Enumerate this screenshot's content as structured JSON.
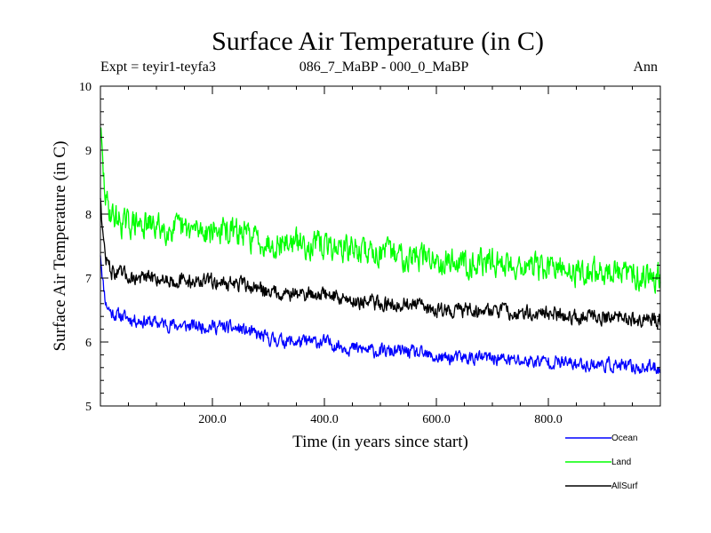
{
  "chart_data": {
    "type": "line",
    "title": "Surface Air Temperature (in C)",
    "subtitle_left": "Expt = teyir1-teyfa3",
    "subtitle_center": "086_7_MaBP - 000_0_MaBP",
    "subtitle_right": "Ann",
    "xlabel": "Time (in years since start)",
    "ylabel": "Surface Air Temperature (in C)",
    "xlim": [
      0,
      1000
    ],
    "ylim": [
      5,
      10
    ],
    "xticks": [
      200,
      400,
      600,
      800
    ],
    "xtick_labels": [
      "200.0",
      "400.0",
      "600.0",
      "800.0"
    ],
    "yticks": [
      5,
      6,
      7,
      8,
      9,
      10
    ],
    "ytick_labels": [
      "5",
      "6",
      "7",
      "8",
      "9",
      "10"
    ],
    "legend_position": "bottom-right, outside plot",
    "series": [
      {
        "name": "Ocean",
        "color": "#0000ff",
        "x": [
          0,
          5,
          10,
          20,
          40,
          60,
          100,
          150,
          200,
          250,
          300,
          350,
          400,
          450,
          500,
          550,
          600,
          650,
          700,
          750,
          800,
          850,
          900,
          950,
          1000
        ],
        "values": [
          7.4,
          6.9,
          6.6,
          6.45,
          6.4,
          6.35,
          6.3,
          6.25,
          6.25,
          6.2,
          6.05,
          6.0,
          6.0,
          5.9,
          5.85,
          5.85,
          5.75,
          5.75,
          5.75,
          5.7,
          5.7,
          5.65,
          5.65,
          5.6,
          5.6
        ],
        "noise": 0.09
      },
      {
        "name": "Land",
        "color": "#00ff00",
        "x": [
          0,
          5,
          10,
          20,
          40,
          60,
          100,
          150,
          200,
          250,
          300,
          350,
          400,
          450,
          500,
          550,
          600,
          650,
          700,
          750,
          800,
          850,
          900,
          950,
          1000
        ],
        "values": [
          9.4,
          8.6,
          8.2,
          8.0,
          7.85,
          7.85,
          7.8,
          7.75,
          7.75,
          7.7,
          7.55,
          7.55,
          7.5,
          7.45,
          7.4,
          7.35,
          7.3,
          7.25,
          7.25,
          7.2,
          7.15,
          7.1,
          7.1,
          7.05,
          7.05
        ],
        "noise": 0.18
      },
      {
        "name": "AllSurf",
        "color": "#000000",
        "x": [
          0,
          5,
          10,
          20,
          40,
          60,
          100,
          150,
          200,
          250,
          300,
          350,
          400,
          450,
          500,
          550,
          600,
          650,
          700,
          750,
          800,
          850,
          900,
          950,
          1000
        ],
        "values": [
          8.3,
          7.6,
          7.3,
          7.1,
          7.05,
          7.0,
          7.0,
          6.95,
          6.95,
          6.9,
          6.8,
          6.75,
          6.75,
          6.65,
          6.6,
          6.6,
          6.5,
          6.5,
          6.5,
          6.45,
          6.45,
          6.4,
          6.4,
          6.35,
          6.35
        ],
        "noise": 0.1
      }
    ]
  }
}
